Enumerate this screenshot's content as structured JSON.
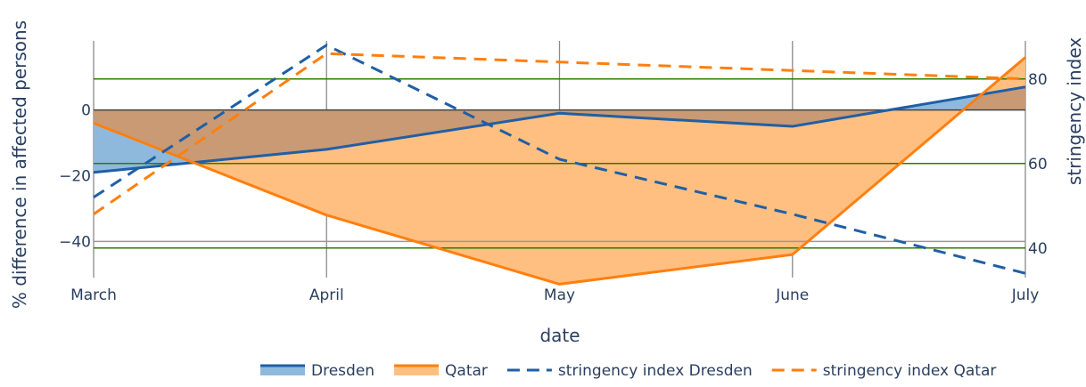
{
  "chart_data": {
    "type": "area",
    "x": [
      "March",
      "April",
      "May",
      "June",
      "July"
    ],
    "xlabel": "date",
    "ylabel": "% difference in affected persons",
    "y2label": "stringency index",
    "ylim": [
      -51,
      21
    ],
    "y2lim": [
      33,
      89
    ],
    "yticks": [
      0,
      -20,
      -40
    ],
    "y2ticks": [
      80,
      60,
      40
    ],
    "legend_position": "bottom",
    "series": [
      {
        "name": "Dresden",
        "axis": "left",
        "style": "solid-fill",
        "values": [
          -19,
          -12,
          -1,
          -5,
          7
        ],
        "color": "#1f5fa6",
        "fill": "#8fb9dc"
      },
      {
        "name": "Qatar",
        "axis": "left",
        "style": "solid-fill",
        "values": [
          -4,
          -32,
          -53,
          -44,
          16
        ],
        "color": "#ff7f0e",
        "fill": "#ffbf80"
      },
      {
        "name": "stringency index Dresden",
        "axis": "right",
        "style": "dash",
        "values": [
          52,
          88,
          61,
          48,
          34
        ],
        "color": "#1f5fa6"
      },
      {
        "name": "stringency index Qatar",
        "axis": "right",
        "style": "dash",
        "values": [
          48,
          86,
          84,
          82,
          80
        ],
        "color": "#ff7f0e"
      }
    ],
    "reference_lines": [
      {
        "axis": "left",
        "value": 0,
        "color": "#444444"
      },
      {
        "axis": "left",
        "value": -40,
        "color": "#999999"
      },
      {
        "axis": "right",
        "value": 80,
        "color": "#2e7d00"
      },
      {
        "axis": "right",
        "value": 60,
        "color": "#2e7d00"
      },
      {
        "axis": "right",
        "value": 40,
        "color": "#2e7d00"
      }
    ],
    "overlap_fill": "#c99a74"
  }
}
